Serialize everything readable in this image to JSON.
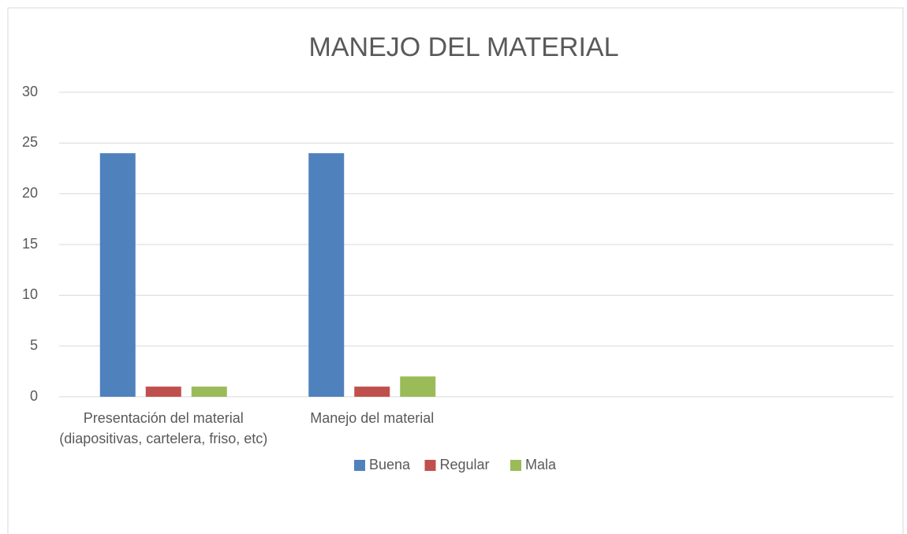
{
  "chart_data": {
    "type": "bar",
    "title": "MANEJO DEL MATERIAL",
    "categories": [
      "Presentación del material (diapositivas, cartelera, friso, etc)",
      "Manejo del material",
      null,
      null
    ],
    "series": [
      {
        "name": "Buena",
        "color": "#4f81bd",
        "values": [
          24,
          24,
          null,
          null
        ]
      },
      {
        "name": "Regular",
        "color": "#c0504d",
        "values": [
          1,
          1,
          null,
          null
        ]
      },
      {
        "name": "Mala",
        "color": "#9bbb59",
        "values": [
          1,
          2,
          null,
          null
        ]
      }
    ],
    "ylim": [
      0,
      30
    ],
    "yticks": [
      0,
      5,
      10,
      15,
      20,
      25,
      30
    ],
    "grid": true,
    "legend": "bottom"
  }
}
